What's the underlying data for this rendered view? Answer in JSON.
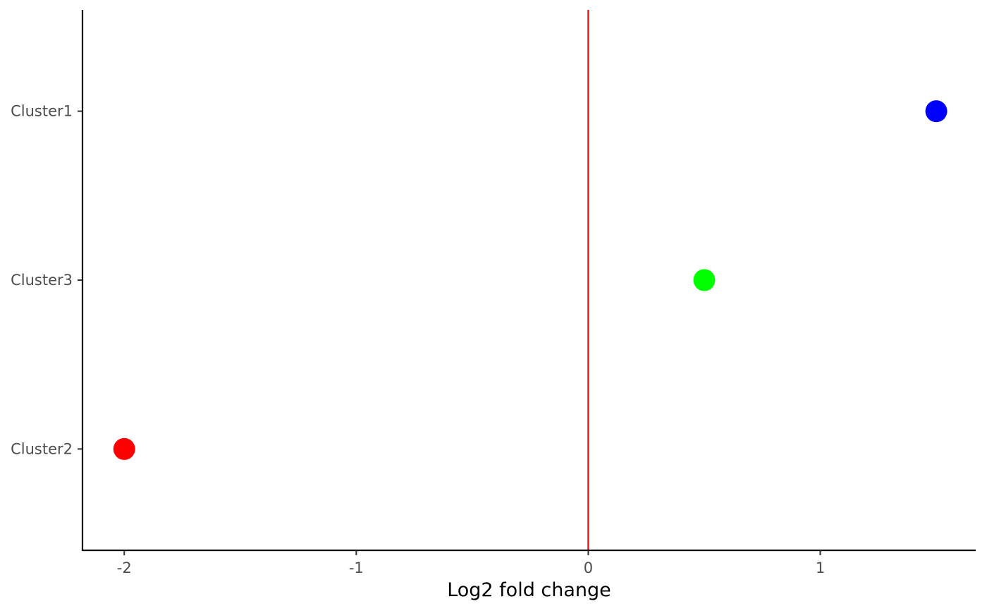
{
  "chart_data": {
    "type": "scatter",
    "title": "",
    "xlabel": "Log2 fold change",
    "ylabel": "",
    "xlim": [
      -2.18,
      1.67
    ],
    "x_ticks": [
      -2,
      -1,
      0,
      1
    ],
    "x_tick_labels": [
      "-2",
      "-1",
      "0",
      "1"
    ],
    "categories": [
      "Cluster1",
      "Cluster3",
      "Cluster2"
    ],
    "y_range_categories": [
      0.4,
      3.6
    ],
    "points": [
      {
        "category": "Cluster1",
        "x": 1.5,
        "color": "#0000ff"
      },
      {
        "category": "Cluster3",
        "x": 0.5,
        "color": "#00ff00"
      },
      {
        "category": "Cluster2",
        "x": -2.0,
        "color": "#ff0000"
      }
    ],
    "reference_line": {
      "x": 0,
      "color": "#e31a1c"
    },
    "grid": false,
    "legend": "none"
  }
}
